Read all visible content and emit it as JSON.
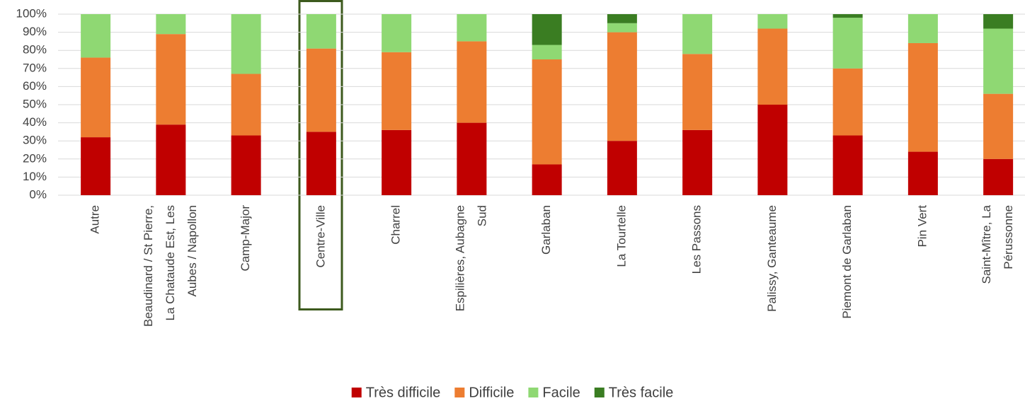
{
  "chart_data": {
    "type": "stacked_bar",
    "categories": [
      [
        "Autre"
      ],
      [
        "Beaudinard / St Pierre,",
        "La Chataude Est, Les",
        "Aubes / Napollon"
      ],
      [
        "Camp-Major"
      ],
      [
        "Centre-Ville"
      ],
      [
        "Charrel"
      ],
      [
        "Espilières, Aubagne",
        "Sud"
      ],
      [
        "Garlaban"
      ],
      [
        "La Tourtelle"
      ],
      [
        "Les Passons"
      ],
      [
        "Palissy, Ganteaume"
      ],
      [
        "Piemont de Garlaban"
      ],
      [
        "Pin Vert"
      ],
      [
        "Saint-Mître, La",
        "Pérussonne"
      ]
    ],
    "series": [
      {
        "name": "Très difficile",
        "color": "#c00000",
        "values": [
          32,
          39,
          33,
          35,
          36,
          40,
          17,
          30,
          36,
          50,
          33,
          24,
          20
        ]
      },
      {
        "name": "Difficile",
        "color": "#ed7d31",
        "values": [
          44,
          50,
          34,
          46,
          43,
          45,
          58,
          60,
          42,
          42,
          37,
          60,
          36
        ]
      },
      {
        "name": "Facile",
        "color": "#8fd873",
        "values": [
          24,
          11,
          33,
          19,
          21,
          15,
          8,
          5,
          22,
          8,
          28,
          16,
          36
        ]
      },
      {
        "name": "Très facile",
        "color": "#3a7d22",
        "values": [
          0,
          0,
          0,
          0,
          0,
          0,
          17,
          5,
          0,
          0,
          2,
          0,
          8
        ]
      }
    ],
    "ylim": [
      0,
      100
    ],
    "yticks": [
      {
        "value": 0,
        "label": "0%"
      },
      {
        "value": 10,
        "label": "10%"
      },
      {
        "value": 20,
        "label": "20%"
      },
      {
        "value": 30,
        "label": "30%"
      },
      {
        "value": 40,
        "label": "40%"
      },
      {
        "value": 50,
        "label": "50%"
      },
      {
        "value": 60,
        "label": "60%"
      },
      {
        "value": 70,
        "label": "70%"
      },
      {
        "value": 80,
        "label": "80%"
      },
      {
        "value": 90,
        "label": "90%"
      },
      {
        "value": 100,
        "label": "100%"
      }
    ],
    "grid": true,
    "legend": "bottom"
  }
}
